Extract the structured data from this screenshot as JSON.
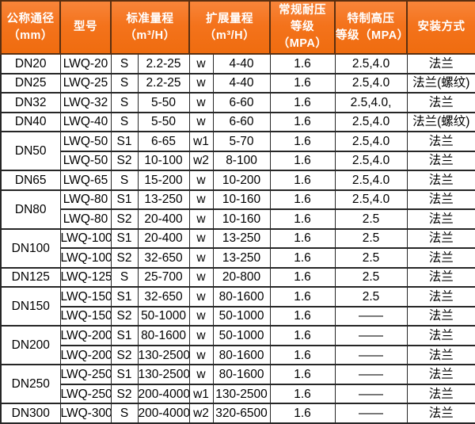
{
  "colors": {
    "header_bg": "#f4731c",
    "header_bg_light": "#f8853a",
    "header_border": "#5a2f10",
    "body_border": "#262626",
    "header_text": "#ffffff",
    "body_text": "#000000",
    "body_bg": "#ffffff"
  },
  "table": {
    "columns": {
      "diameter": {
        "line1": "公称通径",
        "line2": "（mm）"
      },
      "model": {
        "line1": "型号"
      },
      "standard_range": {
        "line1": "标准量程",
        "line2": "（m³/H）"
      },
      "extended_range": {
        "line1": "扩展量程",
        "line2": "（m³/H）"
      },
      "normal_pressure": {
        "line1": "常规耐压",
        "line2": "等级（MPA）"
      },
      "special_pressure": {
        "line1": "特制高压",
        "line2": "等级（MPA）"
      },
      "installation": {
        "line1": "安装方式"
      }
    },
    "rows": [
      {
        "diameter": "DN20",
        "diameter_rowspan": 1,
        "model": "LWQ-20",
        "std_code": "S",
        "std_range": "2.2-25",
        "ext_code": "w",
        "ext_range": "4-40",
        "normal_pressure": "1.6",
        "special_pressure": "2.5,4.0",
        "installation": "法兰"
      },
      {
        "diameter": "DN25",
        "diameter_rowspan": 1,
        "model": "LWQ-25",
        "std_code": "S",
        "std_range": "2.2-25",
        "ext_code": "w",
        "ext_range": "4-40",
        "normal_pressure": "1.6",
        "special_pressure": "2.5,4.0",
        "installation": "法兰(螺纹)"
      },
      {
        "diameter": "DN32",
        "diameter_rowspan": 1,
        "model": "LWQ-32",
        "std_code": "S",
        "std_range": "5-50",
        "ext_code": "w",
        "ext_range": "6-60",
        "normal_pressure": "1.6",
        "special_pressure": "2.5,4.0,",
        "installation": "法兰"
      },
      {
        "diameter": "DN40",
        "diameter_rowspan": 1,
        "model": "LWQ-40",
        "std_code": "S",
        "std_range": "5-50",
        "ext_code": "w",
        "ext_range": "6-60",
        "normal_pressure": "1.6",
        "special_pressure": "2.5,4.0",
        "installation": "法兰(螺纹)"
      },
      {
        "diameter": "DN50",
        "diameter_rowspan": 2,
        "model": "LWQ-50",
        "std_code": "S1",
        "std_range": "6-65",
        "ext_code": "w1",
        "ext_range": "5-70",
        "normal_pressure": "1.6",
        "special_pressure": "2.5,4.0",
        "installation": "法兰"
      },
      {
        "model": "LWQ-50",
        "std_code": "S2",
        "std_range": "10-100",
        "ext_code": "w2",
        "ext_range": "8-100",
        "normal_pressure": "1.6",
        "special_pressure": "2.5,4.0",
        "installation": "法兰"
      },
      {
        "diameter": "DN65",
        "diameter_rowspan": 1,
        "model": "LWQ-65",
        "std_code": "S",
        "std_range": "15-200",
        "ext_code": "w",
        "ext_range": "10-200",
        "normal_pressure": "1.6",
        "special_pressure": "2.5,4.0",
        "installation": "法兰"
      },
      {
        "diameter": "DN80",
        "diameter_rowspan": 2,
        "model": "LWQ-80",
        "std_code": "S1",
        "std_range": "13-250",
        "ext_code": "w",
        "ext_range": "10-160",
        "normal_pressure": "1.6",
        "special_pressure": "2.5,4.0",
        "installation": "法兰"
      },
      {
        "model": "LWQ-80",
        "std_code": "S2",
        "std_range": "20-400",
        "ext_code": "w",
        "ext_range": "10-160",
        "normal_pressure": "1.6",
        "special_pressure": "2.5",
        "installation": "法兰"
      },
      {
        "diameter": "DN100",
        "diameter_rowspan": 2,
        "model": "LWQ-100",
        "std_code": "S1",
        "std_range": "20-400",
        "ext_code": "w",
        "ext_range": "13-250",
        "normal_pressure": "1.6",
        "special_pressure": "2.5",
        "installation": "法兰"
      },
      {
        "model": "LWQ-100",
        "std_code": "S2",
        "std_range": "32-650",
        "ext_code": "w",
        "ext_range": "13-250",
        "normal_pressure": "1.6",
        "special_pressure": "2.5",
        "installation": "法兰"
      },
      {
        "diameter": "DN125",
        "diameter_rowspan": 1,
        "model": "LWQ-125",
        "std_code": "S",
        "std_range": "25-700",
        "ext_code": "w",
        "ext_range": "20-800",
        "normal_pressure": "1.6",
        "special_pressure": "2.5",
        "installation": "法兰"
      },
      {
        "diameter": "DN150",
        "diameter_rowspan": 2,
        "model": "LWQ-150",
        "std_code": "S1",
        "std_range": "32-650",
        "ext_code": "w",
        "ext_range": "80-1600",
        "normal_pressure": "1.6",
        "special_pressure": "2.5",
        "installation": "法兰"
      },
      {
        "model": "LWQ-150",
        "std_code": "S2",
        "std_range": "50-1000",
        "ext_code": "w",
        "ext_range": "50-1000",
        "normal_pressure": "1.6",
        "special_pressure": "——",
        "installation": "法兰"
      },
      {
        "diameter": "DN200",
        "diameter_rowspan": 2,
        "model": "LWQ-200",
        "std_code": "S1",
        "std_range": "80-1600",
        "ext_code": "w",
        "ext_range": "50-1000",
        "normal_pressure": "1.6",
        "special_pressure": "——",
        "installation": "法兰"
      },
      {
        "model": "LWQ-200",
        "std_code": "S2",
        "std_range": "130-2500",
        "ext_code": "w",
        "ext_range": "80-1600",
        "normal_pressure": "1.6",
        "special_pressure": "——",
        "installation": "法兰"
      },
      {
        "diameter": "DN250",
        "diameter_rowspan": 2,
        "model": "LWQ-250",
        "std_code": "S1",
        "std_range": "130-2500",
        "ext_code": "w",
        "ext_range": "80-1600",
        "normal_pressure": "1.6",
        "special_pressure": "——",
        "installation": "法兰"
      },
      {
        "model": "LWQ-250",
        "std_code": "S2",
        "std_range": "200-4000",
        "ext_code": "w1",
        "ext_range": "130-2500",
        "normal_pressure": "1.6",
        "special_pressure": "——",
        "installation": "法兰"
      },
      {
        "diameter": "DN300",
        "diameter_rowspan": 1,
        "model": "LWQ-300",
        "std_code": "S",
        "std_range": "200-4000",
        "ext_code": "w2",
        "ext_range": "320-6500",
        "normal_pressure": "1.6",
        "special_pressure": "——",
        "installation": "法兰"
      }
    ]
  }
}
